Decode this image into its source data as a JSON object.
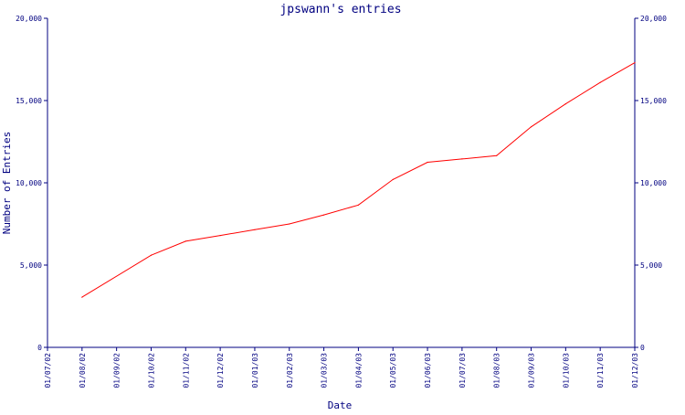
{
  "chart_data": {
    "type": "line",
    "title": "jpswann's entries",
    "xlabel": "Date",
    "ylabel": "Number of Entries",
    "x_ticks": [
      "01/07/02",
      "01/08/02",
      "01/09/02",
      "01/10/02",
      "01/11/02",
      "01/12/02",
      "01/01/03",
      "01/02/03",
      "01/03/03",
      "01/04/03",
      "01/05/03",
      "01/06/03",
      "01/07/03",
      "01/08/03",
      "01/09/03",
      "01/10/03",
      "01/11/03",
      "01/12/03"
    ],
    "y_ticks": [
      0,
      5000,
      10000,
      15000,
      20000
    ],
    "y_tick_labels": [
      "0",
      "5,000",
      "10,000",
      "15,000",
      "20,000"
    ],
    "y2_tick_labels": [
      "0",
      "5,000",
      "10,000",
      "15,000",
      "20,000"
    ],
    "ylim": [
      0,
      20000
    ],
    "xlim": [
      "01/07/02",
      "01/12/03"
    ],
    "grid": false,
    "series": [
      {
        "color": "#ff0000",
        "x": [
          "01/08/02",
          "01/10/02",
          "01/11/02",
          "01/12/02",
          "01/01/03",
          "01/02/03",
          "01/03/03",
          "01/04/03",
          "01/05/03",
          "01/06/03",
          "01/07/03",
          "01/08/03",
          "01/09/03",
          "01/10/03",
          "01/11/03",
          "01/12/03"
        ],
        "values": [
          3050,
          5600,
          6450,
          6800,
          7150,
          7500,
          8050,
          8650,
          10200,
          11250,
          11450,
          11650,
          13400,
          14800,
          16100,
          17300
        ]
      }
    ],
    "colors": {
      "axis": "#000080",
      "text": "#000080",
      "line": "#ff0000",
      "background": "#ffffff"
    }
  }
}
